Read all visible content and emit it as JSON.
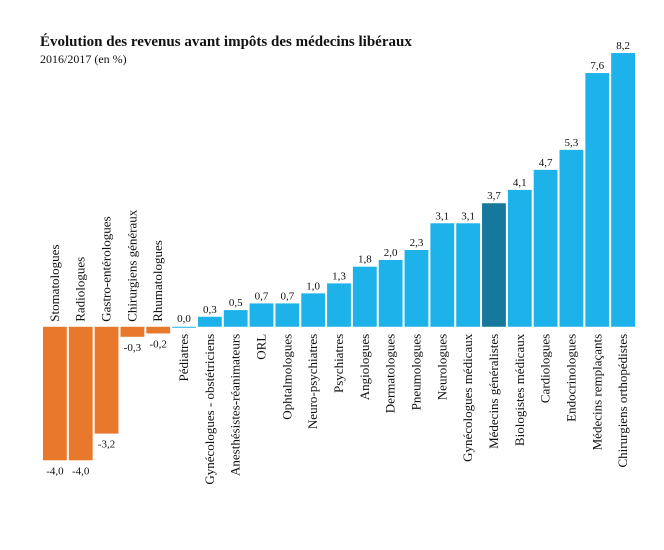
{
  "chart_data": {
    "type": "bar",
    "title": "Évolution des revenus avant impôts des médecins libéraux",
    "subtitle": "2016/2017 (en %)",
    "categories": [
      "Stomatologues",
      "Radiologues",
      "Gastro-entérologues",
      "Chirurgiens généraux",
      "Rhumatologues",
      "Pédiatres",
      "Gynécologues - obstétriciens",
      "Anesthésistes-réanimateurs",
      "ORL",
      "Ophtalmologues",
      "Neuro-psychiatres",
      "Psychiatres",
      "Angiologues",
      "Dermatologues",
      "Pneumologues",
      "Neurologues",
      "Gynécologues médicaux",
      "Médecins généralistes",
      "Biologistes médicaux",
      "Cardiologues",
      "Endocrinologues",
      "Médecins remplaçants",
      "Chirurgiens orthopédistes"
    ],
    "values": [
      -4.0,
      -4.0,
      -3.2,
      -0.3,
      -0.2,
      0.0,
      0.3,
      0.5,
      0.7,
      0.7,
      1.0,
      1.3,
      1.8,
      2.0,
      2.3,
      3.1,
      3.1,
      3.7,
      4.1,
      4.7,
      5.3,
      7.6,
      8.2
    ],
    "value_labels": [
      "-4,0",
      "-4,0",
      "-3,2",
      "-0,3",
      "-0,2",
      "0,0",
      "0,3",
      "0,5",
      "0,7",
      "0,7",
      "1,0",
      "1,3",
      "1,8",
      "2,0",
      "2,3",
      "3,1",
      "3,1",
      "3,7",
      "4,1",
      "4,7",
      "5,3",
      "7,6",
      "8,2"
    ],
    "colors": [
      "#e8792c",
      "#e8792c",
      "#e8792c",
      "#e8792c",
      "#e8792c",
      "#1db3ea",
      "#1db3ea",
      "#1db3ea",
      "#1db3ea",
      "#1db3ea",
      "#1db3ea",
      "#1db3ea",
      "#1db3ea",
      "#1db3ea",
      "#1db3ea",
      "#1db3ea",
      "#1db3ea",
      "#16789a",
      "#1db3ea",
      "#1db3ea",
      "#1db3ea",
      "#1db3ea",
      "#1db3ea"
    ],
    "ylim": [
      -4.5,
      8.5
    ]
  }
}
